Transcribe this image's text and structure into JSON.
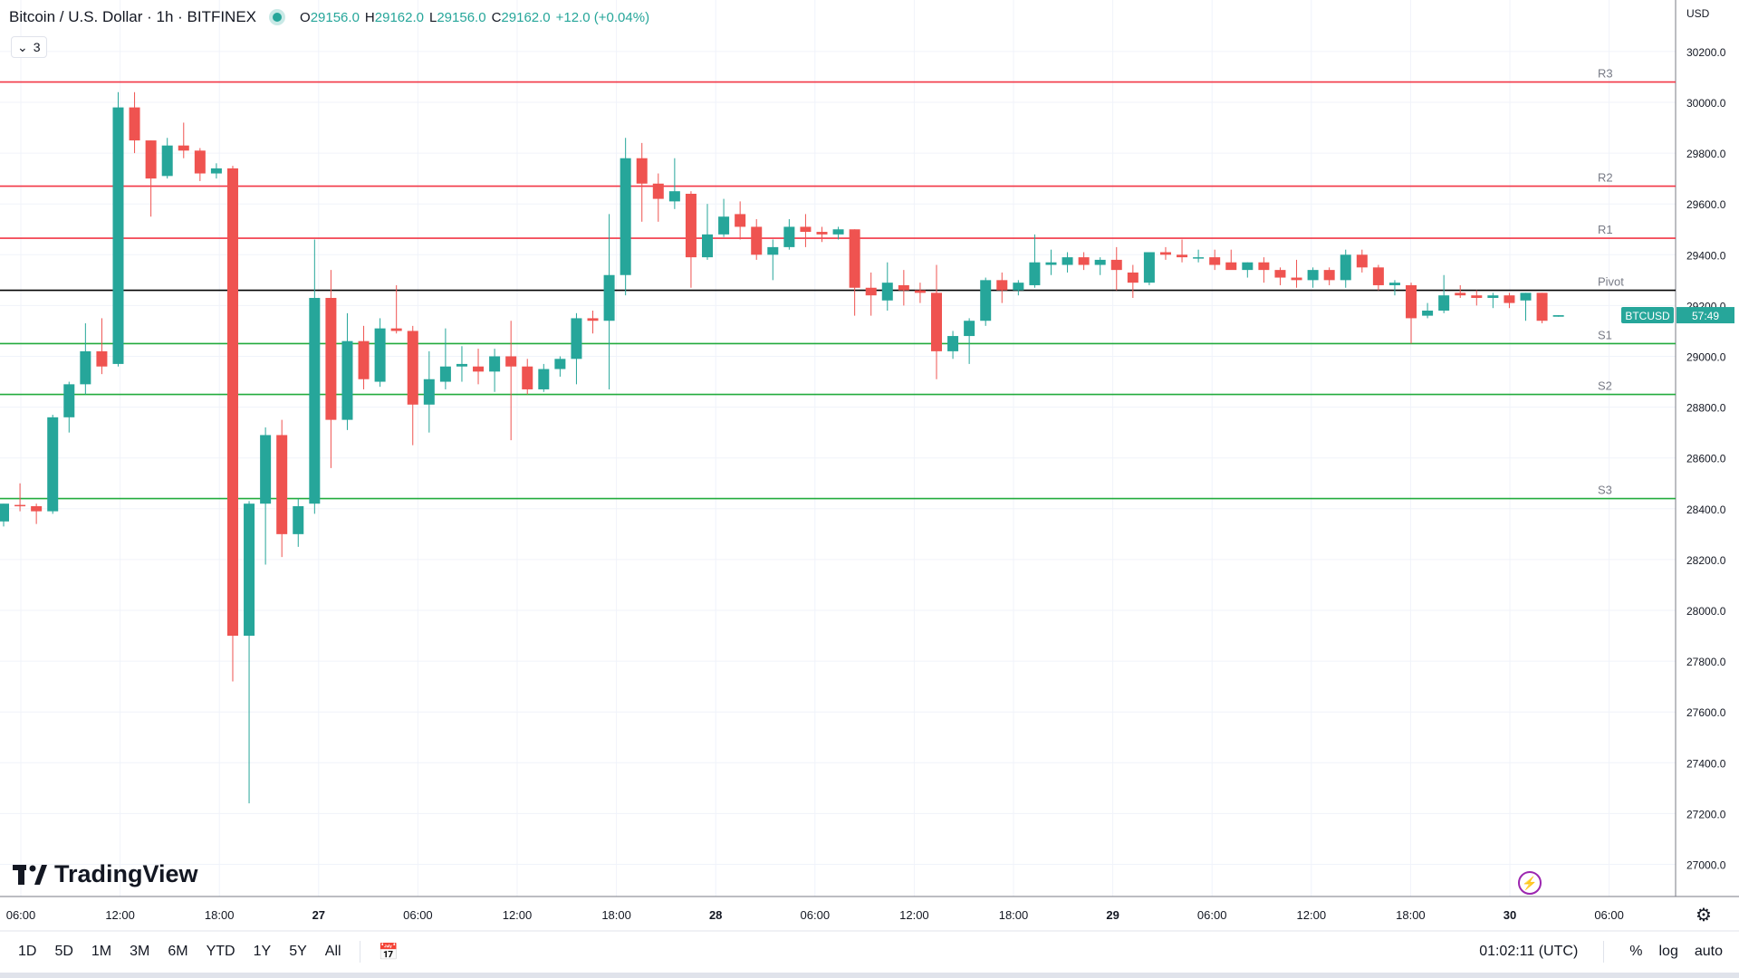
{
  "header": {
    "title": "Bitcoin / U.S. Dollar · 1h · BITFINEX",
    "ohlc": [
      {
        "label": "O",
        "value": "29156.0"
      },
      {
        "label": "H",
        "value": "29162.0"
      },
      {
        "label": "L",
        "value": "29156.0"
      },
      {
        "label": "C",
        "value": "29162.0"
      },
      {
        "label": "",
        "value": "+12.0 (+0.04%)"
      }
    ],
    "indicator_count": "3"
  },
  "price_axis": {
    "currency": "USD"
  },
  "logo_text": "TradingView",
  "last_price_label": {
    "symbol": "BTCUSD",
    "countdown": "57:49"
  },
  "bottom_bar": {
    "ranges": [
      "1D",
      "5D",
      "1M",
      "3M",
      "6M",
      "YTD",
      "1Y",
      "5Y",
      "All"
    ],
    "clock": "01:02:11 (UTC)",
    "percent": "%",
    "log": "log",
    "auto": "auto"
  },
  "colors": {
    "up": "#26a69a",
    "down": "#ef5350",
    "resistance": "#f23645",
    "support": "#22ab3c",
    "pivot": "#000000",
    "grid": "#f0f3fa"
  },
  "icons": [
    "calendar-icon",
    "settings-icon",
    "flash-icon",
    "tradingview-logo-icon"
  ],
  "chart_data": {
    "type": "candlestick",
    "symbol": "BTCUSD",
    "interval": "1h",
    "y_ticks": [
      27000,
      27200,
      27400,
      27600,
      27800,
      28000,
      28200,
      28400,
      28600,
      28800,
      29000,
      29200,
      29400,
      29600,
      29800,
      30000,
      30200
    ],
    "x_ticks": [
      "06:00",
      "12:00",
      "18:00",
      "27",
      "06:00",
      "12:00",
      "18:00",
      "28",
      "06:00",
      "12:00",
      "18:00",
      "29",
      "06:00",
      "12:00",
      "18:00",
      "30",
      "06:00"
    ],
    "levels": [
      {
        "name": "R3",
        "value": 30080
      },
      {
        "name": "R2",
        "value": 29670
      },
      {
        "name": "R1",
        "value": 29465
      },
      {
        "name": "Pivot",
        "value": 29260
      },
      {
        "name": "S1",
        "value": 29050
      },
      {
        "name": "S2",
        "value": 28850
      },
      {
        "name": "S3",
        "value": 28440
      }
    ],
    "candles": [
      [
        28350,
        28420,
        28330,
        28420
      ],
      [
        28415,
        28500,
        28390,
        28410
      ],
      [
        28410,
        28420,
        28340,
        28390
      ],
      [
        28390,
        28770,
        28380,
        28760
      ],
      [
        28760,
        28900,
        28700,
        28890
      ],
      [
        28890,
        29130,
        28850,
        29020
      ],
      [
        29020,
        29150,
        28930,
        28960
      ],
      [
        28970,
        30040,
        28960,
        29980
      ],
      [
        29980,
        30040,
        29800,
        29850
      ],
      [
        29850,
        29850,
        29550,
        29700
      ],
      [
        29710,
        29860,
        29700,
        29830
      ],
      [
        29830,
        29920,
        29780,
        29810
      ],
      [
        29810,
        29820,
        29690,
        29720
      ],
      [
        29720,
        29760,
        29700,
        29740
      ],
      [
        29740,
        29750,
        27720,
        27900
      ],
      [
        27900,
        28430,
        27240,
        28420
      ],
      [
        28420,
        28720,
        28180,
        28690
      ],
      [
        28690,
        28750,
        28210,
        28300
      ],
      [
        28300,
        28440,
        28250,
        28410
      ],
      [
        28420,
        29460,
        28380,
        29230
      ],
      [
        29230,
        29340,
        28560,
        28750
      ],
      [
        28750,
        29170,
        28710,
        29060
      ],
      [
        29060,
        29120,
        28870,
        28910
      ],
      [
        28900,
        29150,
        28880,
        29110
      ],
      [
        29110,
        29280,
        29090,
        29100
      ],
      [
        29100,
        29120,
        28650,
        28810
      ],
      [
        28810,
        29020,
        28700,
        28910
      ],
      [
        28900,
        29110,
        28870,
        28960
      ],
      [
        28960,
        29040,
        28900,
        28970
      ],
      [
        28960,
        29030,
        28890,
        28940
      ],
      [
        28940,
        29030,
        28860,
        29000
      ],
      [
        29000,
        29140,
        28670,
        28960
      ],
      [
        28960,
        28990,
        28850,
        28870
      ],
      [
        28870,
        28970,
        28860,
        28950
      ],
      [
        28950,
        29000,
        28920,
        28990
      ],
      [
        28990,
        29170,
        28890,
        29150
      ],
      [
        29150,
        29180,
        29090,
        29140
      ],
      [
        29140,
        29560,
        28870,
        29320
      ],
      [
        29320,
        29860,
        29240,
        29780
      ],
      [
        29780,
        29840,
        29530,
        29680
      ],
      [
        29680,
        29720,
        29530,
        29620
      ],
      [
        29610,
        29780,
        29580,
        29650
      ],
      [
        29640,
        29650,
        29270,
        29390
      ],
      [
        29390,
        29600,
        29380,
        29480
      ],
      [
        29480,
        29620,
        29470,
        29550
      ],
      [
        29560,
        29610,
        29460,
        29510
      ],
      [
        29510,
        29540,
        29380,
        29400
      ],
      [
        29400,
        29460,
        29300,
        29430
      ],
      [
        29430,
        29540,
        29420,
        29510
      ],
      [
        29510,
        29560,
        29430,
        29490
      ],
      [
        29490,
        29510,
        29450,
        29480
      ],
      [
        29480,
        29510,
        29460,
        29500
      ],
      [
        29500,
        29500,
        29160,
        29270
      ],
      [
        29270,
        29330,
        29160,
        29240
      ],
      [
        29220,
        29370,
        29180,
        29290
      ],
      [
        29280,
        29340,
        29200,
        29260
      ],
      [
        29260,
        29290,
        29210,
        29250
      ],
      [
        29250,
        29360,
        28910,
        29020
      ],
      [
        29020,
        29100,
        28990,
        29080
      ],
      [
        29080,
        29150,
        28970,
        29140
      ],
      [
        29140,
        29310,
        29120,
        29300
      ],
      [
        29300,
        29330,
        29210,
        29260
      ],
      [
        29260,
        29300,
        29240,
        29290
      ],
      [
        29280,
        29480,
        29270,
        29370
      ],
      [
        29360,
        29420,
        29320,
        29370
      ],
      [
        29360,
        29410,
        29330,
        29390
      ],
      [
        29390,
        29410,
        29340,
        29360
      ],
      [
        29360,
        29390,
        29320,
        29380
      ],
      [
        29380,
        29430,
        29260,
        29340
      ],
      [
        29330,
        29360,
        29230,
        29290
      ],
      [
        29290,
        29400,
        29280,
        29410
      ],
      [
        29410,
        29430,
        29380,
        29400
      ],
      [
        29400,
        29460,
        29370,
        29390
      ],
      [
        29390,
        29420,
        29370,
        29390
      ],
      [
        29390,
        29420,
        29340,
        29360
      ],
      [
        29370,
        29420,
        29350,
        29340
      ],
      [
        29340,
        29370,
        29310,
        29370
      ],
      [
        29370,
        29390,
        29290,
        29340
      ],
      [
        29340,
        29350,
        29280,
        29310
      ],
      [
        29310,
        29380,
        29270,
        29300
      ],
      [
        29300,
        29350,
        29270,
        29340
      ],
      [
        29340,
        29350,
        29280,
        29300
      ],
      [
        29300,
        29420,
        29270,
        29400
      ],
      [
        29400,
        29420,
        29330,
        29350
      ],
      [
        29350,
        29360,
        29260,
        29280
      ],
      [
        29280,
        29300,
        29240,
        29290
      ],
      [
        29280,
        29290,
        29050,
        29150
      ],
      [
        29160,
        29210,
        29150,
        29180
      ],
      [
        29180,
        29320,
        29170,
        29240
      ],
      [
        29250,
        29280,
        29230,
        29240
      ],
      [
        29240,
        29260,
        29200,
        29230
      ],
      [
        29230,
        29250,
        29190,
        29240
      ],
      [
        29240,
        29250,
        29190,
        29210
      ],
      [
        29220,
        29250,
        29140,
        29250
      ],
      [
        29250,
        29250,
        29130,
        29140
      ],
      [
        29156,
        29162,
        29156,
        29162
      ]
    ]
  }
}
